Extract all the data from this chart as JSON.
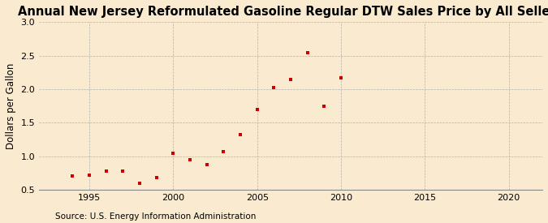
{
  "title": "Annual New Jersey Reformulated Gasoline Regular DTW Sales Price by All Sellers",
  "ylabel": "Dollars per Gallon",
  "source": "Source: U.S. Energy Information Administration",
  "background_color": "#faebd0",
  "marker_color": "#cc0000",
  "years": [
    1994,
    1995,
    1996,
    1997,
    1998,
    1999,
    2000,
    2001,
    2002,
    2003,
    2004,
    2005,
    2006,
    2007,
    2008,
    2009,
    2010
  ],
  "values": [
    0.71,
    0.72,
    0.78,
    0.78,
    0.6,
    0.68,
    1.04,
    0.95,
    0.88,
    1.07,
    1.32,
    1.7,
    2.02,
    2.15,
    2.54,
    1.75,
    2.17
  ],
  "xlim": [
    1992,
    2022
  ],
  "ylim": [
    0.5,
    3.0
  ],
  "xticks": [
    1995,
    2000,
    2005,
    2010,
    2015,
    2020
  ],
  "yticks": [
    0.5,
    1.0,
    1.5,
    2.0,
    2.5,
    3.0
  ],
  "title_fontsize": 10.5,
  "label_fontsize": 8.5,
  "tick_fontsize": 8,
  "source_fontsize": 7.5
}
